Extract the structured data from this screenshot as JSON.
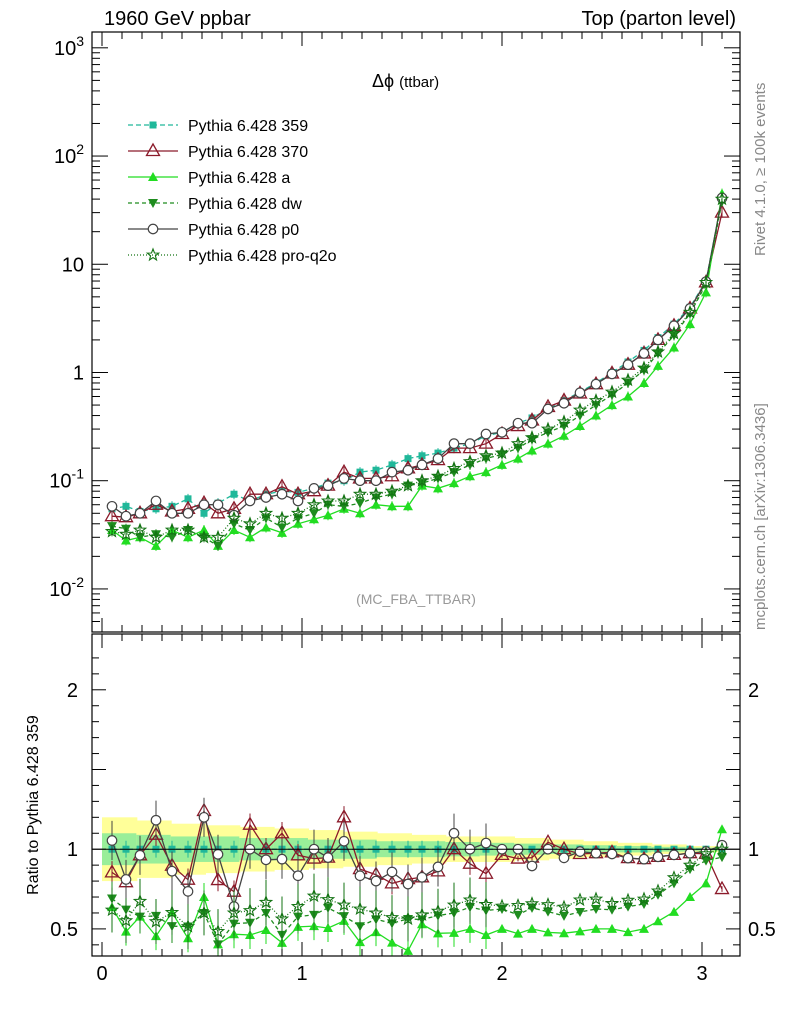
{
  "header": {
    "left": "1960 GeV ppbar",
    "right": "Top (parton level)"
  },
  "side_text": {
    "rivet": "Rivet 4.1.0, ≥ 100k events",
    "mcplots": "mcplots.cern.ch [arXiv:1306.3436]"
  },
  "watermark": "(MC_FBA_TTBAR)",
  "colors": {
    "s359": "#20b89a",
    "s370": "#8b1a2a",
    "a": "#22dd22",
    "dw": "#1e8c1e",
    "p0": "#444444",
    "q2o": "#137313",
    "band_yellow": "#ffff99",
    "band_green": "#99ee99"
  },
  "chart_data": {
    "type": "line",
    "title_symbol": "Δϕ",
    "title_suffix": "(ttbar)",
    "xlabel": "",
    "xlim": [
      -0.05,
      3.19
    ],
    "x_ticks": [
      "0",
      "1",
      "2",
      "3"
    ],
    "y_scale": "log",
    "ylim": [
      0.004,
      1400
    ],
    "y_tick_labels": [
      {
        "base": "10",
        "exp": "-2",
        "value": 0.01
      },
      {
        "base": "10",
        "exp": "-1",
        "value": 0.1
      },
      {
        "base": "1",
        "exp": "",
        "value": 1
      },
      {
        "base": "10",
        "exp": "",
        "value": 10
      },
      {
        "base": "10",
        "exp": "2",
        "value": 100
      },
      {
        "base": "10",
        "exp": "3",
        "value": 1000
      }
    ],
    "ratio_ylabel": "Ratio to Pythia 6.428 359",
    "ratio_ylim": [
      0.33,
      2.35
    ],
    "ratio_ticks": [
      "0.5",
      "1",
      "2"
    ],
    "x": [
      0.05,
      0.12,
      0.19,
      0.27,
      0.35,
      0.43,
      0.51,
      0.58,
      0.66,
      0.74,
      0.82,
      0.9,
      0.98,
      1.06,
      1.13,
      1.21,
      1.29,
      1.37,
      1.45,
      1.53,
      1.6,
      1.68,
      1.76,
      1.84,
      1.92,
      2.0,
      2.08,
      2.15,
      2.23,
      2.31,
      2.39,
      2.47,
      2.55,
      2.63,
      2.71,
      2.78,
      2.86,
      2.94,
      3.02,
      3.1
    ],
    "legend": [
      "Pythia 6.428 359",
      "Pythia 6.428 370",
      "Pythia 6.428 a",
      "Pythia 6.428 dw",
      "Pythia 6.428 p0",
      "Pythia 6.428 pro-q2o"
    ],
    "series": [
      {
        "name": "Pythia 6.428 359",
        "key": "s359",
        "marker": "square",
        "dash": "5,3",
        "values": [
          0.055,
          0.058,
          0.052,
          0.055,
          0.058,
          0.068,
          0.05,
          0.062,
          0.075,
          0.065,
          0.075,
          0.08,
          0.078,
          0.085,
          0.095,
          0.1,
          0.12,
          0.125,
          0.14,
          0.16,
          0.17,
          0.18,
          0.2,
          0.22,
          0.26,
          0.28,
          0.34,
          0.38,
          0.46,
          0.55,
          0.66,
          0.8,
          1.0,
          1.25,
          1.6,
          2.1,
          2.8,
          4.0,
          7.0,
          40.0
        ]
      },
      {
        "name": "Pythia 6.428 370",
        "key": "s370",
        "marker": "triangle-open",
        "dash": "",
        "values": [
          0.047,
          0.046,
          0.05,
          0.06,
          0.052,
          0.055,
          0.062,
          0.05,
          0.055,
          0.075,
          0.075,
          0.088,
          0.075,
          0.08,
          0.09,
          0.12,
          0.105,
          0.105,
          0.11,
          0.13,
          0.14,
          0.155,
          0.2,
          0.2,
          0.22,
          0.27,
          0.32,
          0.36,
          0.48,
          0.55,
          0.64,
          0.78,
          0.98,
          1.18,
          1.5,
          2.0,
          2.7,
          3.9,
          6.8,
          30.0
        ]
      },
      {
        "name": "Pythia 6.428 a",
        "key": "a",
        "marker": "triangle",
        "dash": "",
        "values": [
          0.035,
          0.028,
          0.03,
          0.025,
          0.035,
          0.03,
          0.035,
          0.025,
          0.035,
          0.03,
          0.037,
          0.033,
          0.04,
          0.044,
          0.048,
          0.055,
          0.05,
          0.06,
          0.058,
          0.058,
          0.09,
          0.085,
          0.095,
          0.11,
          0.12,
          0.14,
          0.16,
          0.19,
          0.22,
          0.26,
          0.32,
          0.4,
          0.5,
          0.6,
          0.8,
          1.15,
          1.7,
          2.8,
          5.5,
          45.0
        ]
      },
      {
        "name": "Pythia 6.428 dw",
        "key": "dw",
        "marker": "triangle-down",
        "dash": "4,3",
        "values": [
          0.038,
          0.036,
          0.03,
          0.032,
          0.03,
          0.035,
          0.03,
          0.025,
          0.04,
          0.035,
          0.045,
          0.037,
          0.045,
          0.05,
          0.06,
          0.058,
          0.062,
          0.07,
          0.075,
          0.09,
          0.095,
          0.105,
          0.12,
          0.14,
          0.16,
          0.175,
          0.2,
          0.24,
          0.28,
          0.32,
          0.4,
          0.5,
          0.62,
          0.8,
          1.05,
          1.5,
          2.2,
          3.5,
          6.5,
          38.0
        ]
      },
      {
        "name": "Pythia 6.428 p0",
        "key": "p0",
        "marker": "circle-open",
        "dash": "",
        "values": [
          0.058,
          0.047,
          0.05,
          0.065,
          0.05,
          0.05,
          0.06,
          0.06,
          0.048,
          0.065,
          0.07,
          0.075,
          0.065,
          0.085,
          0.09,
          0.105,
          0.1,
          0.1,
          0.12,
          0.125,
          0.14,
          0.16,
          0.22,
          0.22,
          0.27,
          0.28,
          0.34,
          0.34,
          0.46,
          0.52,
          0.65,
          0.78,
          0.97,
          1.18,
          1.5,
          2.0,
          2.7,
          3.9,
          6.9,
          41.0
        ]
      },
      {
        "name": "Pythia 6.428 pro-q2o",
        "key": "q2o",
        "marker": "star",
        "dash": "1,2",
        "values": [
          0.034,
          0.032,
          0.035,
          0.03,
          0.035,
          0.035,
          0.03,
          0.03,
          0.045,
          0.04,
          0.05,
          0.045,
          0.05,
          0.06,
          0.065,
          0.065,
          0.075,
          0.075,
          0.08,
          0.09,
          0.1,
          0.11,
          0.13,
          0.15,
          0.17,
          0.18,
          0.22,
          0.25,
          0.3,
          0.35,
          0.45,
          0.55,
          0.66,
          0.85,
          1.1,
          1.55,
          2.3,
          3.6,
          6.8,
          40.0
        ]
      }
    ],
    "band_yellow_halfwidth": [
      0.2,
      0.18,
      0.16,
      0.15,
      0.14,
      0.13,
      0.12,
      0.11,
      0.1,
      0.09,
      0.08,
      0.08,
      0.07,
      0.06,
      0.05,
      0.04,
      0.03,
      0.02
    ],
    "band_green_halfwidth": [
      0.1,
      0.09,
      0.08,
      0.08,
      0.07,
      0.07,
      0.06,
      0.06,
      0.05,
      0.05,
      0.045,
      0.04,
      0.035,
      0.03,
      0.025,
      0.02,
      0.015,
      0.01
    ]
  }
}
